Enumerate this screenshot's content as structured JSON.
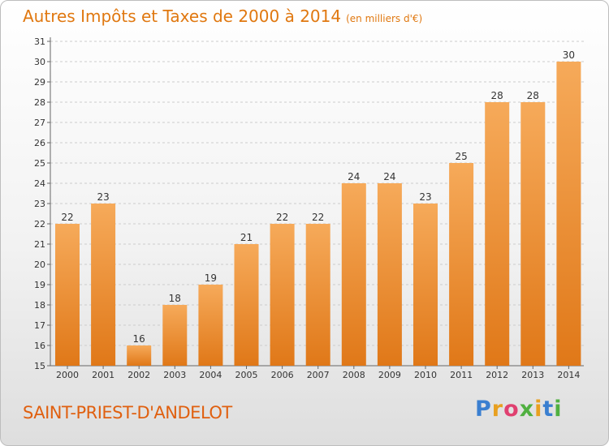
{
  "title": "Autres Impôts et Taxes de 2000 à 2014",
  "unit_note": "(en milliers d'€)",
  "commune": "SAINT-PRIEST-D'ANDELOT",
  "logo": {
    "text": "Proxiti",
    "letters": [
      "P",
      "r",
      "o",
      "x",
      "i",
      "t",
      "i"
    ],
    "colors": [
      "#3a7fd0",
      "#e8a020",
      "#e04070",
      "#50b040",
      "#e8a020",
      "#3a7fd0",
      "#50b040"
    ]
  },
  "colors": {
    "bar_light": "#f6aa5a",
    "bar_dark": "#e07818",
    "axis": "#666666",
    "grid": "#cccccc"
  },
  "chart_data": {
    "type": "bar",
    "categories": [
      "2000",
      "2001",
      "2002",
      "2003",
      "2004",
      "2005",
      "2006",
      "2007",
      "2008",
      "2009",
      "2010",
      "2011",
      "2012",
      "2013",
      "2014"
    ],
    "values": [
      22,
      23,
      16,
      18,
      19,
      21,
      22,
      22,
      24,
      24,
      23,
      25,
      28,
      28,
      30
    ],
    "title": "Autres Impôts et Taxes de 2000 à 2014",
    "subtitle": "(en milliers d'€)",
    "xlabel": "",
    "ylabel": "",
    "ylim": [
      15,
      31
    ],
    "yticks": [
      15,
      16,
      17,
      18,
      19,
      20,
      21,
      22,
      23,
      24,
      25,
      26,
      27,
      28,
      29,
      30,
      31
    ],
    "grid": "horizontal dashed",
    "legend": "none"
  }
}
